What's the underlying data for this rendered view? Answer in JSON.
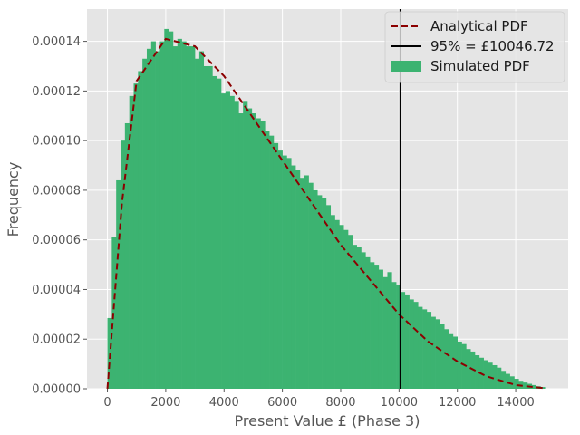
{
  "chart_data": {
    "type": "histogram",
    "xlabel": "Present Value £ (Phase 3)",
    "ylabel": "Frequency",
    "xlim": [
      -700,
      15800
    ],
    "ylim": [
      0,
      0.000153
    ],
    "xticks": [
      0,
      2000,
      4000,
      6000,
      8000,
      10000,
      12000,
      14000
    ],
    "xtick_labels": [
      "0",
      "2000",
      "4000",
      "6000",
      "8000",
      "10000",
      "12000",
      "14000"
    ],
    "yticks": [
      0,
      2e-05,
      4e-05,
      6e-05,
      8e-05,
      0.0001,
      0.00012,
      0.00014
    ],
    "ytick_labels": [
      "0.00000",
      "0.00002",
      "0.00004",
      "0.00006",
      "0.00008",
      "0.00010",
      "0.00012",
      "0.00014"
    ],
    "grid": true,
    "legend_position": "top-right",
    "colors": {
      "bars": "#3cb371",
      "analytical": "#8b0000",
      "vline": "#000000",
      "background": "#e5e5e5",
      "grid": "#ffffff"
    },
    "series": [
      {
        "name": "Simulated PDF",
        "kind": "histogram",
        "bin_start": 0,
        "bin_width": 150,
        "values": [
          2.85e-05,
          6.1e-05,
          8.4e-05,
          0.0001,
          0.000107,
          0.000118,
          0.000123,
          0.000128,
          0.000133,
          0.000137,
          0.00014,
          0.000136,
          0.00014,
          0.000145,
          0.000144,
          0.000138,
          0.000141,
          0.00014,
          0.000138,
          0.000138,
          0.000133,
          0.000136,
          0.00013,
          0.00013,
          0.000126,
          0.000125,
          0.000119,
          0.00012,
          0.000118,
          0.000116,
          0.000111,
          0.000116,
          0.000113,
          0.000111,
          0.000109,
          0.000108,
          0.000104,
          0.000102,
          9.9e-05,
          9.6e-05,
          9.4e-05,
          9.3e-05,
          9e-05,
          8.8e-05,
          8.5e-05,
          8.6e-05,
          8.3e-05,
          8e-05,
          7.8e-05,
          7.7e-05,
          7.4e-05,
          7e-05,
          6.8e-05,
          6.6e-05,
          6.4e-05,
          6.2e-05,
          5.8e-05,
          5.7e-05,
          5.5e-05,
          5.3e-05,
          5.1e-05,
          5e-05,
          4.8e-05,
          4.5e-05,
          4.7e-05,
          4.3e-05,
          4.2e-05,
          3.9e-05,
          3.8e-05,
          3.6e-05,
          3.5e-05,
          3.3e-05,
          3.2e-05,
          3.1e-05,
          2.9e-05,
          2.8e-05,
          2.6e-05,
          2.4e-05,
          2.2e-05,
          2.1e-05,
          1.9e-05,
          1.8e-05,
          1.6e-05,
          1.5e-05,
          1.35e-05,
          1.25e-05,
          1.15e-05,
          1.05e-05,
          9.5e-06,
          8.5e-06,
          7.2e-06,
          6e-06,
          5e-06,
          4e-06,
          3.2e-06,
          2.5e-06,
          2e-06,
          1.5e-06,
          1e-06,
          7e-07
        ]
      },
      {
        "name": "Analytical PDF",
        "kind": "line",
        "style": "dashed",
        "x": [
          0,
          500,
          1000,
          2000,
          3000,
          4000,
          5000,
          6000,
          7000,
          8000,
          9000,
          10000,
          11000,
          12000,
          13000,
          14000,
          15000
        ],
        "y": [
          0,
          7.5e-05,
          0.000124,
          0.000141,
          0.000138,
          0.000126,
          0.000109,
          9.2e-05,
          7.5e-05,
          5.8e-05,
          4.4e-05,
          3e-05,
          1.9e-05,
          1.1e-05,
          5e-06,
          1.5e-06,
          2e-07
        ]
      },
      {
        "name": "95% = £10046.72",
        "kind": "vline",
        "x": 10046.72
      }
    ]
  }
}
